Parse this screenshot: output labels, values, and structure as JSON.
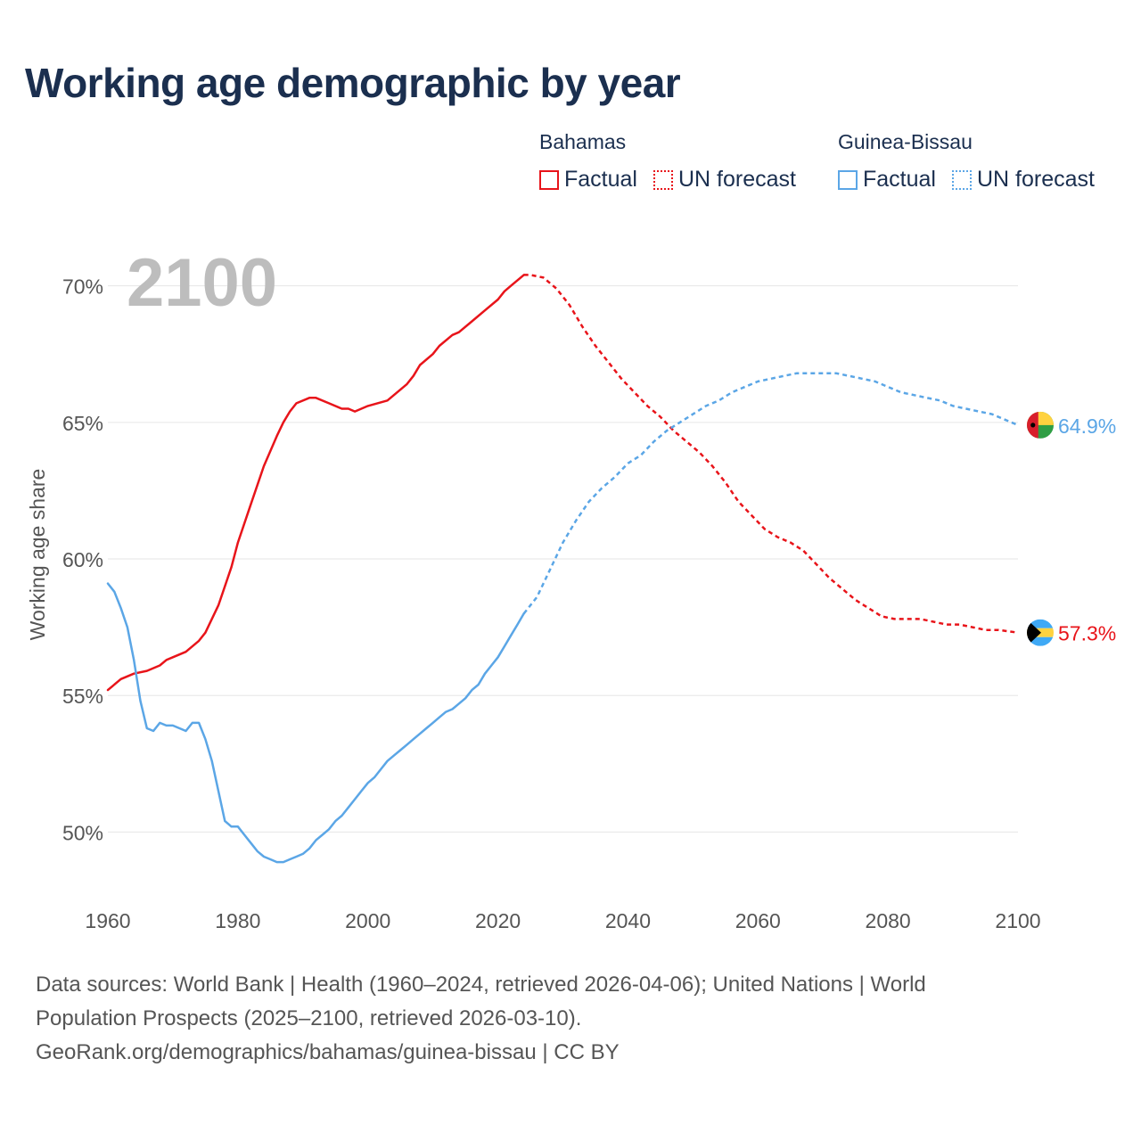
{
  "title": "Working age demographic by year",
  "legend": {
    "groups": [
      {
        "country": "Bahamas",
        "factual_label": "Factual",
        "forecast_label": "UN forecast",
        "color": "#e8141a"
      },
      {
        "country": "Guinea-Bissau",
        "factual_label": "Factual",
        "forecast_label": "UN forecast",
        "color": "#5ba6e6"
      }
    ]
  },
  "footer": {
    "line1": "Data sources: World Bank | Health (1960–2024, retrieved 2026-04-06); United Nations | World",
    "line2": "Population Prospects (2025–2100, retrieved 2026-03-10).",
    "line3": "GeoRank.org/demographics/bahamas/guinea-bissau | CC BY"
  },
  "chart_data": {
    "type": "line",
    "title": "Working age demographic by year",
    "year_watermark": "2100",
    "xlabel": "",
    "ylabel": "Working age share",
    "xlim": [
      1960,
      2100
    ],
    "ylim": [
      47.5,
      71
    ],
    "x_ticks": [
      1960,
      1980,
      2000,
      2020,
      2040,
      2060,
      2080,
      2100
    ],
    "y_ticks": [
      50,
      55,
      60,
      65,
      70
    ],
    "y_tick_labels": [
      "50%",
      "55%",
      "60%",
      "65%",
      "70%"
    ],
    "grid": true,
    "series": [
      {
        "name": "Bahamas",
        "color": "#e8141a",
        "end_label": "57.3%",
        "flag": "bahamas-flag",
        "factual": {
          "x": [
            1960,
            1962,
            1964,
            1966,
            1968,
            1969,
            1970,
            1972,
            1974,
            1975,
            1977,
            1979,
            1980,
            1982,
            1984,
            1986,
            1987,
            1988,
            1989,
            1991,
            1992,
            1994,
            1996,
            1997,
            1998,
            2000,
            2003,
            2006,
            2007,
            2008,
            2010,
            2011,
            2013,
            2014,
            2016,
            2018,
            2020,
            2021,
            2022,
            2024
          ],
          "y": [
            55.2,
            55.6,
            55.8,
            55.9,
            56.1,
            56.3,
            56.4,
            56.6,
            57.0,
            57.3,
            58.3,
            59.7,
            60.6,
            62.0,
            63.4,
            64.5,
            65.0,
            65.4,
            65.7,
            65.9,
            65.9,
            65.7,
            65.5,
            65.5,
            65.4,
            65.6,
            65.8,
            66.4,
            66.7,
            67.1,
            67.5,
            67.8,
            68.2,
            68.3,
            68.7,
            69.1,
            69.5,
            69.8,
            70.0,
            70.4
          ]
        },
        "forecast": {
          "x": [
            2024,
            2025,
            2027,
            2029,
            2031,
            2033,
            2035,
            2037,
            2039,
            2041,
            2043,
            2045,
            2047,
            2049,
            2051,
            2053,
            2055,
            2057,
            2059,
            2061,
            2063,
            2065,
            2067,
            2069,
            2071,
            2073,
            2075,
            2077,
            2079,
            2081,
            2083,
            2085,
            2087,
            2089,
            2091,
            2093,
            2095,
            2097,
            2100
          ],
          "y": [
            70.4,
            70.4,
            70.3,
            69.9,
            69.3,
            68.5,
            67.8,
            67.2,
            66.6,
            66.1,
            65.6,
            65.2,
            64.7,
            64.3,
            63.9,
            63.4,
            62.8,
            62.1,
            61.6,
            61.1,
            60.8,
            60.6,
            60.3,
            59.8,
            59.3,
            58.9,
            58.5,
            58.2,
            57.9,
            57.8,
            57.8,
            57.8,
            57.7,
            57.6,
            57.6,
            57.5,
            57.4,
            57.4,
            57.3
          ]
        }
      },
      {
        "name": "Guinea-Bissau",
        "color": "#5ba6e6",
        "end_label": "64.9%",
        "flag": "guinea-bissau-flag",
        "factual": {
          "x": [
            1960,
            1961,
            1962,
            1963,
            1964,
            1965,
            1966,
            1967,
            1968,
            1969,
            1970,
            1972,
            1973,
            1974,
            1975,
            1976,
            1977,
            1978,
            1979,
            1980,
            1981,
            1982,
            1983,
            1984,
            1985,
            1986,
            1987,
            1988,
            1989,
            1990,
            1991,
            1992,
            1993,
            1994,
            1995,
            1996,
            1997,
            1998,
            1999,
            2000,
            2001,
            2002,
            2003,
            2004,
            2005,
            2006,
            2007,
            2008,
            2009,
            2010,
            2011,
            2012,
            2013,
            2014,
            2015,
            2016,
            2017,
            2018,
            2019,
            2020,
            2021,
            2022,
            2023,
            2024
          ],
          "y": [
            59.1,
            58.8,
            58.2,
            57.5,
            56.3,
            54.8,
            53.8,
            53.7,
            54.0,
            53.9,
            53.9,
            53.7,
            54.0,
            54.0,
            53.4,
            52.6,
            51.5,
            50.4,
            50.2,
            50.2,
            49.9,
            49.6,
            49.3,
            49.1,
            49.0,
            48.9,
            48.9,
            49.0,
            49.1,
            49.2,
            49.4,
            49.7,
            49.9,
            50.1,
            50.4,
            50.6,
            50.9,
            51.2,
            51.5,
            51.8,
            52.0,
            52.3,
            52.6,
            52.8,
            53.0,
            53.2,
            53.4,
            53.6,
            53.8,
            54.0,
            54.2,
            54.4,
            54.5,
            54.7,
            54.9,
            55.2,
            55.4,
            55.8,
            56.1,
            56.4,
            56.8,
            57.2,
            57.6,
            58.0
          ]
        },
        "forecast": {
          "x": [
            2024,
            2026,
            2028,
            2030,
            2032,
            2034,
            2036,
            2038,
            2040,
            2042,
            2044,
            2046,
            2048,
            2050,
            2052,
            2054,
            2056,
            2058,
            2060,
            2062,
            2064,
            2066,
            2068,
            2070,
            2072,
            2074,
            2076,
            2078,
            2080,
            2082,
            2084,
            2086,
            2088,
            2090,
            2092,
            2094,
            2096,
            2098,
            2100
          ],
          "y": [
            58.0,
            58.6,
            59.6,
            60.6,
            61.4,
            62.1,
            62.6,
            63.0,
            63.5,
            63.8,
            64.3,
            64.7,
            65.0,
            65.3,
            65.6,
            65.8,
            66.1,
            66.3,
            66.5,
            66.6,
            66.7,
            66.8,
            66.8,
            66.8,
            66.8,
            66.7,
            66.6,
            66.5,
            66.3,
            66.1,
            66.0,
            65.9,
            65.8,
            65.6,
            65.5,
            65.4,
            65.3,
            65.1,
            64.9
          ]
        }
      }
    ]
  }
}
